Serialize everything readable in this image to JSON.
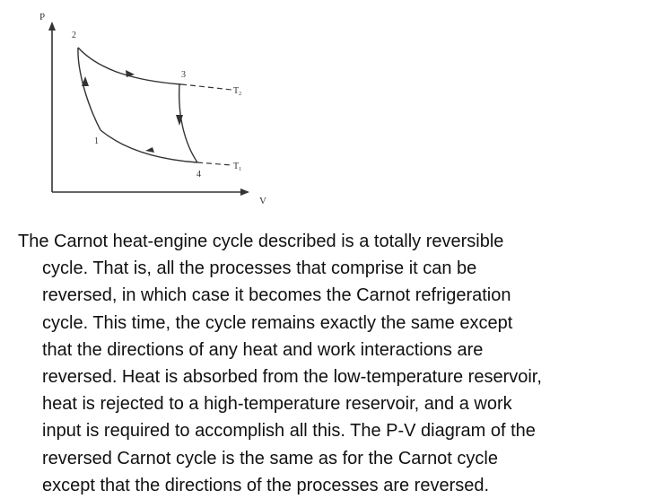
{
  "diagram": {
    "axis_labels": {
      "y": "P",
      "x": "V"
    },
    "state_labels": [
      "1",
      "2",
      "3",
      "4"
    ],
    "isotherm_labels": {
      "high": "T",
      "high_subscript": "2",
      "low": "T",
      "low_subscript": "1"
    }
  },
  "text": {
    "lines": [
      "The Carnot heat-engine cycle described is a totally reversible",
      "cycle. That is, all the processes that comprise it can be",
      "reversed, in which case it becomes the Carnot refrigeration",
      "cycle. This time, the cycle remains exactly the same except",
      "that the directions of any heat and work interactions are",
      "reversed. Heat is absorbed from the low-temperature reservoir,",
      "heat is rejected to a high-temperature reservoir, and a work",
      "input is required to accomplish all this. The P-V diagram of the",
      "reversed Carnot cycle is the same as for the Carnot cycle",
      "except that the directions of the processes are reversed."
    ]
  }
}
